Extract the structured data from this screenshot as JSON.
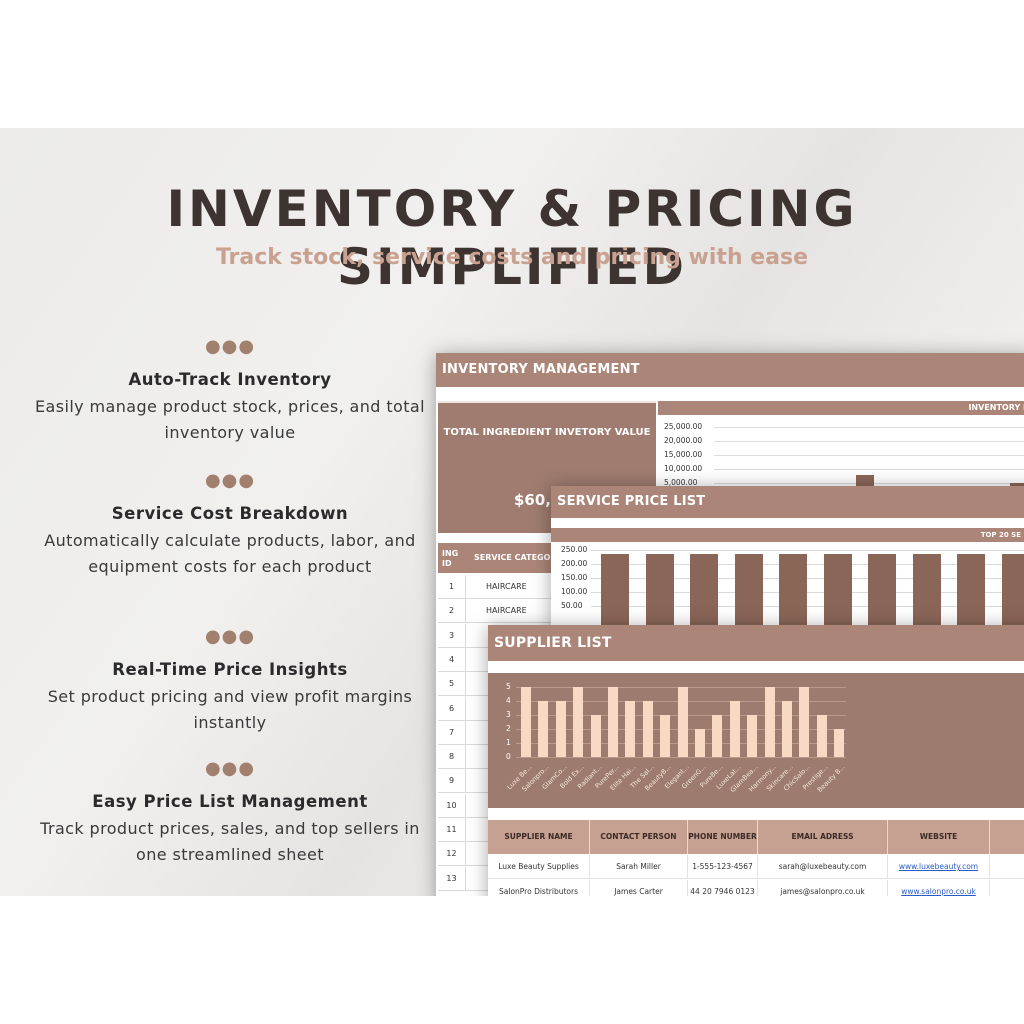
{
  "headline": "INVENTORY & PRICING SIMPLIFIED",
  "subheadline": "Track stock, service costs and pricing with ease",
  "colors": {
    "accent": "#ab8678",
    "accent_dark": "#8a6658",
    "subhead": "#c9a190",
    "bar_light": "#f7d9c4"
  },
  "features": [
    {
      "dots": "●●●",
      "title": "Auto-Track Inventory",
      "desc": "Easily manage product stock, prices, and total inventory value"
    },
    {
      "dots": "●●●",
      "title": "Service Cost Breakdown",
      "desc": "Automatically calculate products, labor, and equipment costs for each product"
    },
    {
      "dots": "●●●",
      "title": "Real-Time Price Insights",
      "desc": "Set product pricing and view profit margins instantly"
    },
    {
      "dots": "●●●",
      "title": "Easy Price List Management",
      "desc": "Track product prices, sales, and top sellers in one streamlined sheet"
    }
  ],
  "inventory": {
    "header": "INVENTORY MANAGEMENT",
    "total_label": "TOTAL INGREDIENT INVETORY VALUE",
    "total_value": "$60,2",
    "chart_title": "INVENTORY I",
    "yticks": [
      "25,000.00",
      "20,000.00",
      "15,000.00",
      "10,000.00",
      "5,000.00"
    ],
    "table_headers": {
      "id": "ING ID",
      "category": "SERVICE CATEGOR"
    },
    "rows": [
      {
        "id": "1",
        "category": "HAIRCARE"
      },
      {
        "id": "2",
        "category": "HAIRCARE"
      },
      {
        "id": "3",
        "category": ""
      },
      {
        "id": "4",
        "category": ""
      },
      {
        "id": "5",
        "category": ""
      },
      {
        "id": "6",
        "category": ""
      },
      {
        "id": "7",
        "category": ""
      },
      {
        "id": "8",
        "category": ""
      },
      {
        "id": "9",
        "category": ""
      },
      {
        "id": "10",
        "category": ""
      },
      {
        "id": "11",
        "category": ""
      },
      {
        "id": "12",
        "category": ""
      },
      {
        "id": "13",
        "category": ""
      }
    ]
  },
  "service": {
    "header": "SERVICE PRICE LIST",
    "chart_title": "TOP 20 SE",
    "yticks": [
      "250.00",
      "200.00",
      "150.00",
      "100.00",
      "50.00"
    ]
  },
  "supplier": {
    "header": "SUPPLIER LIST",
    "columns": [
      "SUPPLIER NAME",
      "CONTACT PERSON",
      "PHONE NUMBER",
      "EMAIL ADRESS",
      "WEBSITE"
    ],
    "rows": [
      [
        "Luxe Beauty Supplies",
        "Sarah Miller",
        "1-555-123-4567",
        "sarah@luxebeauty.com",
        "www.luxebeauty.com"
      ],
      [
        "SalonPro Distributors",
        "James Carter",
        "44 20 7946 0123",
        "james@salonpro.co.uk",
        "www.salonpro.co.uk"
      ]
    ]
  },
  "chart_data": [
    {
      "type": "bar",
      "title": "SUPPLIER LIST",
      "categories": [
        "Luxe Be...",
        "Salonpro...",
        "GlamCo...",
        "Bold Ex...",
        "Radiant...",
        "PurePer...",
        "Elite Hai...",
        "The Sal...",
        "BeautyB...",
        "Elegant...",
        "GreenG...",
        "PureBe...",
        "LuxeLat...",
        "GlamBea...",
        "Harmony...",
        "Skincare...",
        "ChicSalo...",
        "Prestige...",
        "Beauty B..."
      ],
      "values": [
        5,
        4,
        4,
        5,
        3,
        5,
        4,
        4,
        3,
        5,
        2,
        3,
        4,
        3,
        5,
        4,
        5,
        3,
        2
      ],
      "yticks": [
        "5",
        "4",
        "3",
        "2",
        "1",
        "0"
      ],
      "ylim": [
        0,
        5
      ]
    },
    {
      "type": "bar",
      "title": "TOP 20 SE",
      "values": [
        240,
        240,
        240,
        240,
        240,
        240,
        240,
        240,
        240,
        240
      ],
      "yticks": [
        "250.00",
        "200.00",
        "150.00",
        "100.00",
        "50.00"
      ],
      "ylim": [
        0,
        250
      ]
    },
    {
      "type": "bar",
      "title": "INVENTORY I",
      "values": [
        0,
        0,
        0,
        0,
        8000,
        0,
        0,
        0,
        0,
        0,
        0,
        5000,
        5000,
        0,
        5000
      ],
      "yticks": [
        "25,000.00",
        "20,000.00",
        "15,000.00",
        "10,000.00",
        "5,000.00"
      ],
      "ylim": [
        0,
        25000
      ]
    }
  ]
}
